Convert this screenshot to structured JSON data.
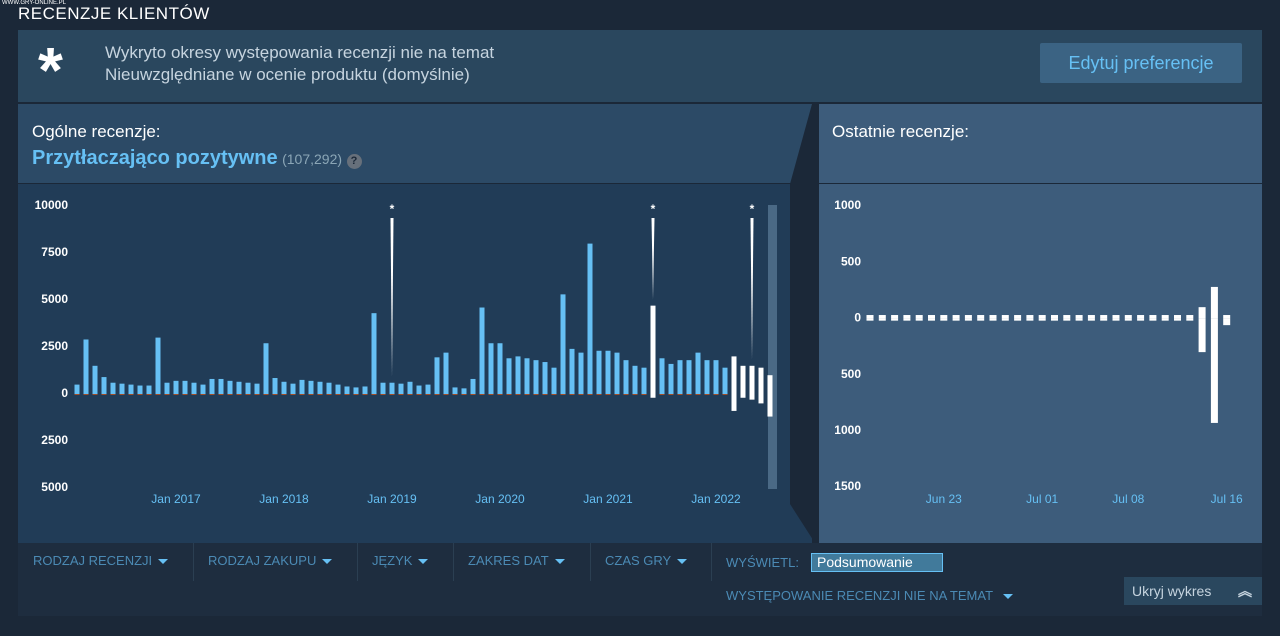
{
  "watermark": "WWW.GRY-ONLINE.PL",
  "header": {
    "title": "RECENZJE KLIENTÓW"
  },
  "banner": {
    "icon": "*",
    "line1": "Wykryto okresy występowania recenzji nie na temat",
    "line2": "Nieuwzględniane w ocenie produktu (domyślnie)",
    "button": "Edytuj preferencje"
  },
  "overall": {
    "label": "Ogólne recenzje:",
    "rating": "Przytłaczająco pozytywne",
    "count": "(107,292)",
    "help": "?"
  },
  "recent": {
    "label": "Ostatnie recenzje:"
  },
  "filters": [
    "RODZAJ RECENZJI",
    "RODZAJ ZAKUPU",
    "JĘZYK",
    "ZAKRES DAT",
    "CZAS GRY"
  ],
  "display": {
    "label": "WYŚWIETL:",
    "select": "Podsumowanie",
    "offtopic": "WYSTĘPOWANIE RECENZJI NIE NA TEMAT",
    "hide": "Ukryj wykres"
  },
  "chart_data": [
    {
      "type": "bar",
      "highlight_color": "#ffffff",
      "highlighted": [
        64,
        73,
        74,
        75,
        76,
        77
      ],
      "annotations": [
        {
          "text": "*",
          "index": 35
        },
        {
          "text": "*",
          "index": 64
        },
        {
          "text": "*",
          "index": 75
        }
      ],
      "categories": [
        null,
        null,
        null,
        null,
        null,
        null,
        null,
        null,
        null,
        null,
        null,
        "Jan 2017",
        null,
        null,
        null,
        null,
        null,
        null,
        null,
        null,
        null,
        null,
        null,
        "Jan 2018",
        null,
        null,
        null,
        null,
        null,
        null,
        null,
        null,
        null,
        null,
        null,
        "Jan 2019",
        null,
        null,
        null,
        null,
        null,
        null,
        null,
        null,
        null,
        null,
        null,
        "Jan 2020",
        null,
        null,
        null,
        null,
        null,
        null,
        null,
        null,
        null,
        null,
        null,
        "Jan 2021",
        null,
        null,
        null,
        null,
        null,
        null,
        null,
        null,
        null,
        null,
        null,
        "Jan 2022",
        null,
        null,
        null,
        null,
        null,
        null
      ],
      "series": [
        {
          "color": "#66c0f4",
          "values": [
            500,
            2900,
            1500,
            900,
            600,
            550,
            500,
            450,
            450,
            3000,
            600,
            700,
            700,
            600,
            500,
            800,
            800,
            700,
            650,
            600,
            550,
            2700,
            850,
            650,
            550,
            750,
            700,
            650,
            600,
            500,
            400,
            350,
            400,
            4300,
            600,
            600,
            550,
            650,
            450,
            500,
            1950,
            2200,
            350,
            300,
            800,
            4600,
            2700,
            2700,
            1900,
            2000,
            1900,
            1800,
            1700,
            1400,
            5300,
            2400,
            2200,
            8000,
            2300,
            2300,
            2200,
            1800,
            1500,
            1400,
            4700,
            1900,
            1600,
            1800,
            1800,
            2200,
            1800,
            1800,
            1400,
            2000,
            1500,
            1500,
            1400,
            1000
          ]
        },
        {
          "color": "#a34c25",
          "values": [
            -50,
            -50,
            -50,
            -50,
            -50,
            -50,
            -50,
            -50,
            -50,
            -50,
            -50,
            -50,
            -50,
            -50,
            -50,
            -50,
            -50,
            -50,
            -50,
            -50,
            -50,
            -50,
            -50,
            -50,
            -50,
            -50,
            -50,
            -50,
            -50,
            -50,
            -50,
            -50,
            -50,
            -50,
            -50,
            -50,
            -50,
            -50,
            -50,
            -50,
            -50,
            -50,
            -50,
            -50,
            -50,
            -50,
            -50,
            -50,
            -50,
            -50,
            -50,
            -50,
            -50,
            -50,
            -50,
            -50,
            -50,
            -50,
            -50,
            -50,
            -50,
            -50,
            -50,
            -50,
            -200,
            -50,
            -50,
            -50,
            -50,
            -50,
            -50,
            -50,
            -50,
            -900,
            -200,
            -300,
            -500,
            -1200
          ]
        }
      ],
      "ylim": [
        -5000,
        10000
      ],
      "yticks": [
        10000,
        7500,
        5000,
        2500,
        0,
        {
          "value": -2500,
          "label": "2500"
        },
        {
          "value": -5000,
          "label": "5000"
        }
      ]
    },
    {
      "type": "bar",
      "highlight_color": "#ffffff",
      "highlighted": [
        0,
        1,
        2,
        3,
        4,
        5,
        6,
        7,
        8,
        9,
        10,
        11,
        12,
        13,
        14,
        15,
        16,
        17,
        18,
        19,
        20,
        21,
        22,
        23,
        24,
        25,
        26,
        27,
        28,
        29
      ],
      "annotations": [],
      "categories": [
        null,
        null,
        null,
        null,
        null,
        null,
        "Jun 23",
        null,
        null,
        null,
        null,
        null,
        null,
        null,
        "Jul 01",
        null,
        null,
        null,
        null,
        null,
        null,
        "Jul 08",
        null,
        null,
        null,
        null,
        null,
        null,
        null,
        "Jul 16"
      ],
      "series": [
        {
          "color": "#66c0f4",
          "values": [
            30,
            30,
            30,
            30,
            30,
            30,
            30,
            30,
            30,
            30,
            30,
            30,
            30,
            30,
            30,
            30,
            30,
            30,
            30,
            30,
            30,
            30,
            30,
            30,
            30,
            30,
            30,
            100,
            280,
            30
          ]
        },
        {
          "color": "#a34c25",
          "values": [
            -20,
            -20,
            -20,
            -20,
            -20,
            -20,
            -20,
            -20,
            -20,
            -20,
            -20,
            -20,
            -20,
            -20,
            -20,
            -20,
            -20,
            -20,
            -20,
            -20,
            -20,
            -20,
            -20,
            -20,
            -20,
            -20,
            -20,
            -300,
            -930,
            -60
          ]
        }
      ],
      "ylim": [
        -1500,
        1000
      ],
      "yticks": [
        1000,
        500,
        0,
        {
          "value": -500,
          "label": "500"
        },
        {
          "value": -1000,
          "label": "1000"
        },
        {
          "value": -1500,
          "label": "1500"
        }
      ]
    }
  ]
}
